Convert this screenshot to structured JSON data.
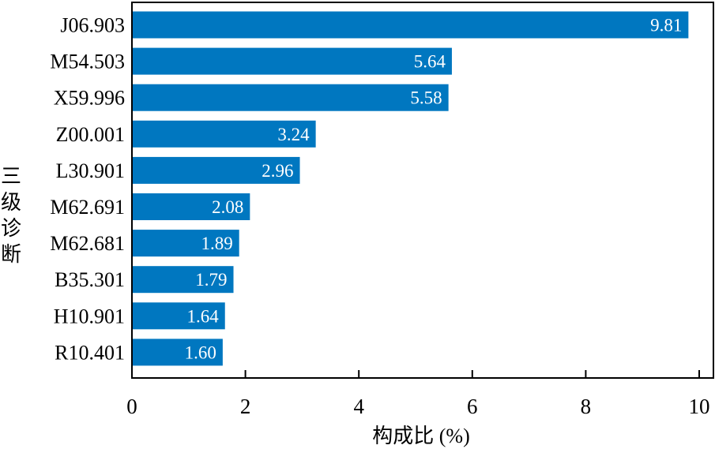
{
  "chart_data": {
    "type": "bar",
    "orientation": "horizontal",
    "categories": [
      "J06.903",
      "M54.503",
      "X59.996",
      "Z00.001",
      "L30.901",
      "M62.691",
      "M62.681",
      "B35.301",
      "H10.901",
      "R10.401"
    ],
    "values": [
      9.81,
      5.64,
      5.58,
      3.24,
      2.96,
      2.08,
      1.89,
      1.79,
      1.64,
      1.6
    ],
    "value_labels": [
      "9.81",
      "5.64",
      "5.58",
      "3.24",
      "2.96",
      "2.08",
      "1.89",
      "1.79",
      "1.64",
      "1.60"
    ],
    "title": "",
    "xlabel": "构成比 (%)",
    "ylabel": "三级诊断",
    "xlim": [
      0,
      10
    ],
    "xticks": [
      0,
      2,
      4,
      6,
      8,
      10
    ],
    "xtick_labels": [
      "0",
      "2",
      "4",
      "6",
      "8",
      "10"
    ],
    "grid": false,
    "bar_color": "#0077c0",
    "data_label_color": "#ffffff",
    "axis_color": "#000000"
  }
}
